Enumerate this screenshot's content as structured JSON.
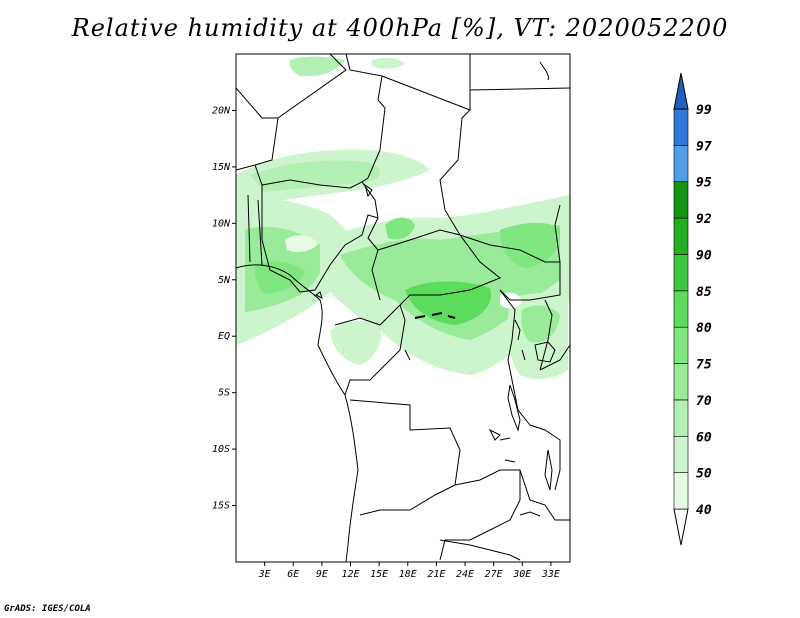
{
  "title": "Relative humidity at 400hPa [%], VT: 2020052200",
  "credit": "GrADS: IGES/COLA",
  "map": {
    "lat_labels": [
      "20N",
      "15N",
      "10N",
      "5N",
      "EQ",
      "5S",
      "10S",
      "15S"
    ],
    "lat_values": [
      20,
      15,
      10,
      5,
      0,
      -5,
      -10,
      -15
    ],
    "lon_labels": [
      "3E",
      "6E",
      "9E",
      "12E",
      "15E",
      "18E",
      "21E",
      "24E",
      "27E",
      "30E",
      "33E"
    ],
    "lon_values": [
      3,
      6,
      9,
      12,
      15,
      18,
      21,
      24,
      27,
      30,
      33
    ],
    "lon_range": [
      0,
      35
    ],
    "lat_range": [
      -20,
      25
    ]
  },
  "colorbar": {
    "levels": [
      "40",
      "50",
      "60",
      "70",
      "75",
      "80",
      "85",
      "90",
      "92",
      "95",
      "97",
      "99"
    ],
    "colors": [
      "#ffffff",
      "#e6fae6",
      "#cdf5cd",
      "#b3f0b3",
      "#99eb99",
      "#80e680",
      "#5cdc5c",
      "#3cc83c",
      "#22b022",
      "#129612",
      "#4f9fe8",
      "#2d78d8",
      "#1f5fc0"
    ]
  }
}
